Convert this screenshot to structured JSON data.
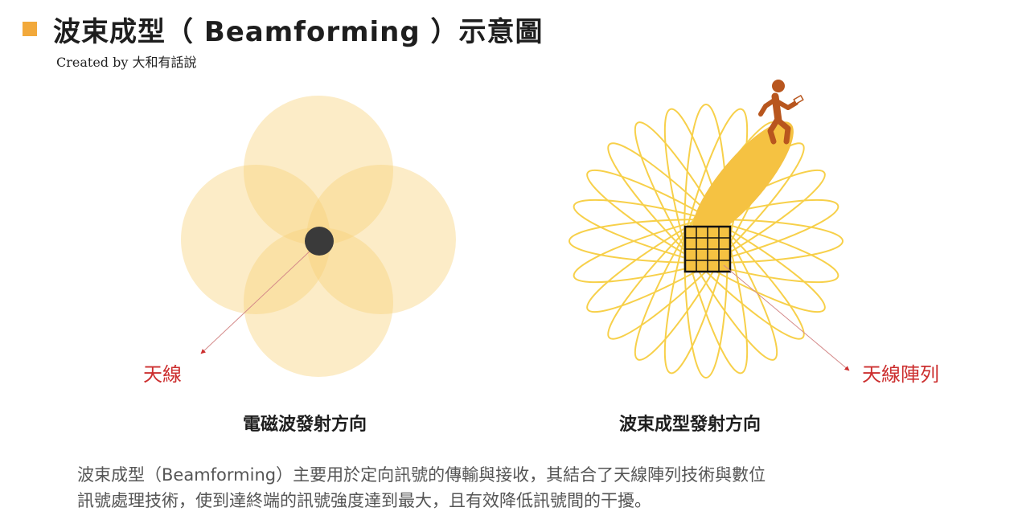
{
  "header": {
    "title": "波束成型（ Beamforming ）示意圖",
    "subtitle": "Created by 大和有話說"
  },
  "colors": {
    "accent": "#f2a93b",
    "circle_fill": "#f7d27a",
    "beam_fill": "#f5c242",
    "petal_stroke": "#f7d04a",
    "label_red": "#cc2f2f",
    "person": "#b8561e",
    "dot": "#3a3a3a"
  },
  "diagram": {
    "left_label": "天線",
    "right_label": "天線陣列",
    "left_caption": "電磁波發射方向",
    "right_caption": "波束成型發射方向",
    "person_icon": "walking-person-with-phone-icon"
  },
  "description": {
    "line1": "波束成型（Beamforming）主要用於定向訊號的傳輸與接收，其結合了天線陣列技術與數位",
    "line2": "訊號處理技術，使到達終端的訊號強度達到最大，且有效降低訊號間的干擾。"
  }
}
